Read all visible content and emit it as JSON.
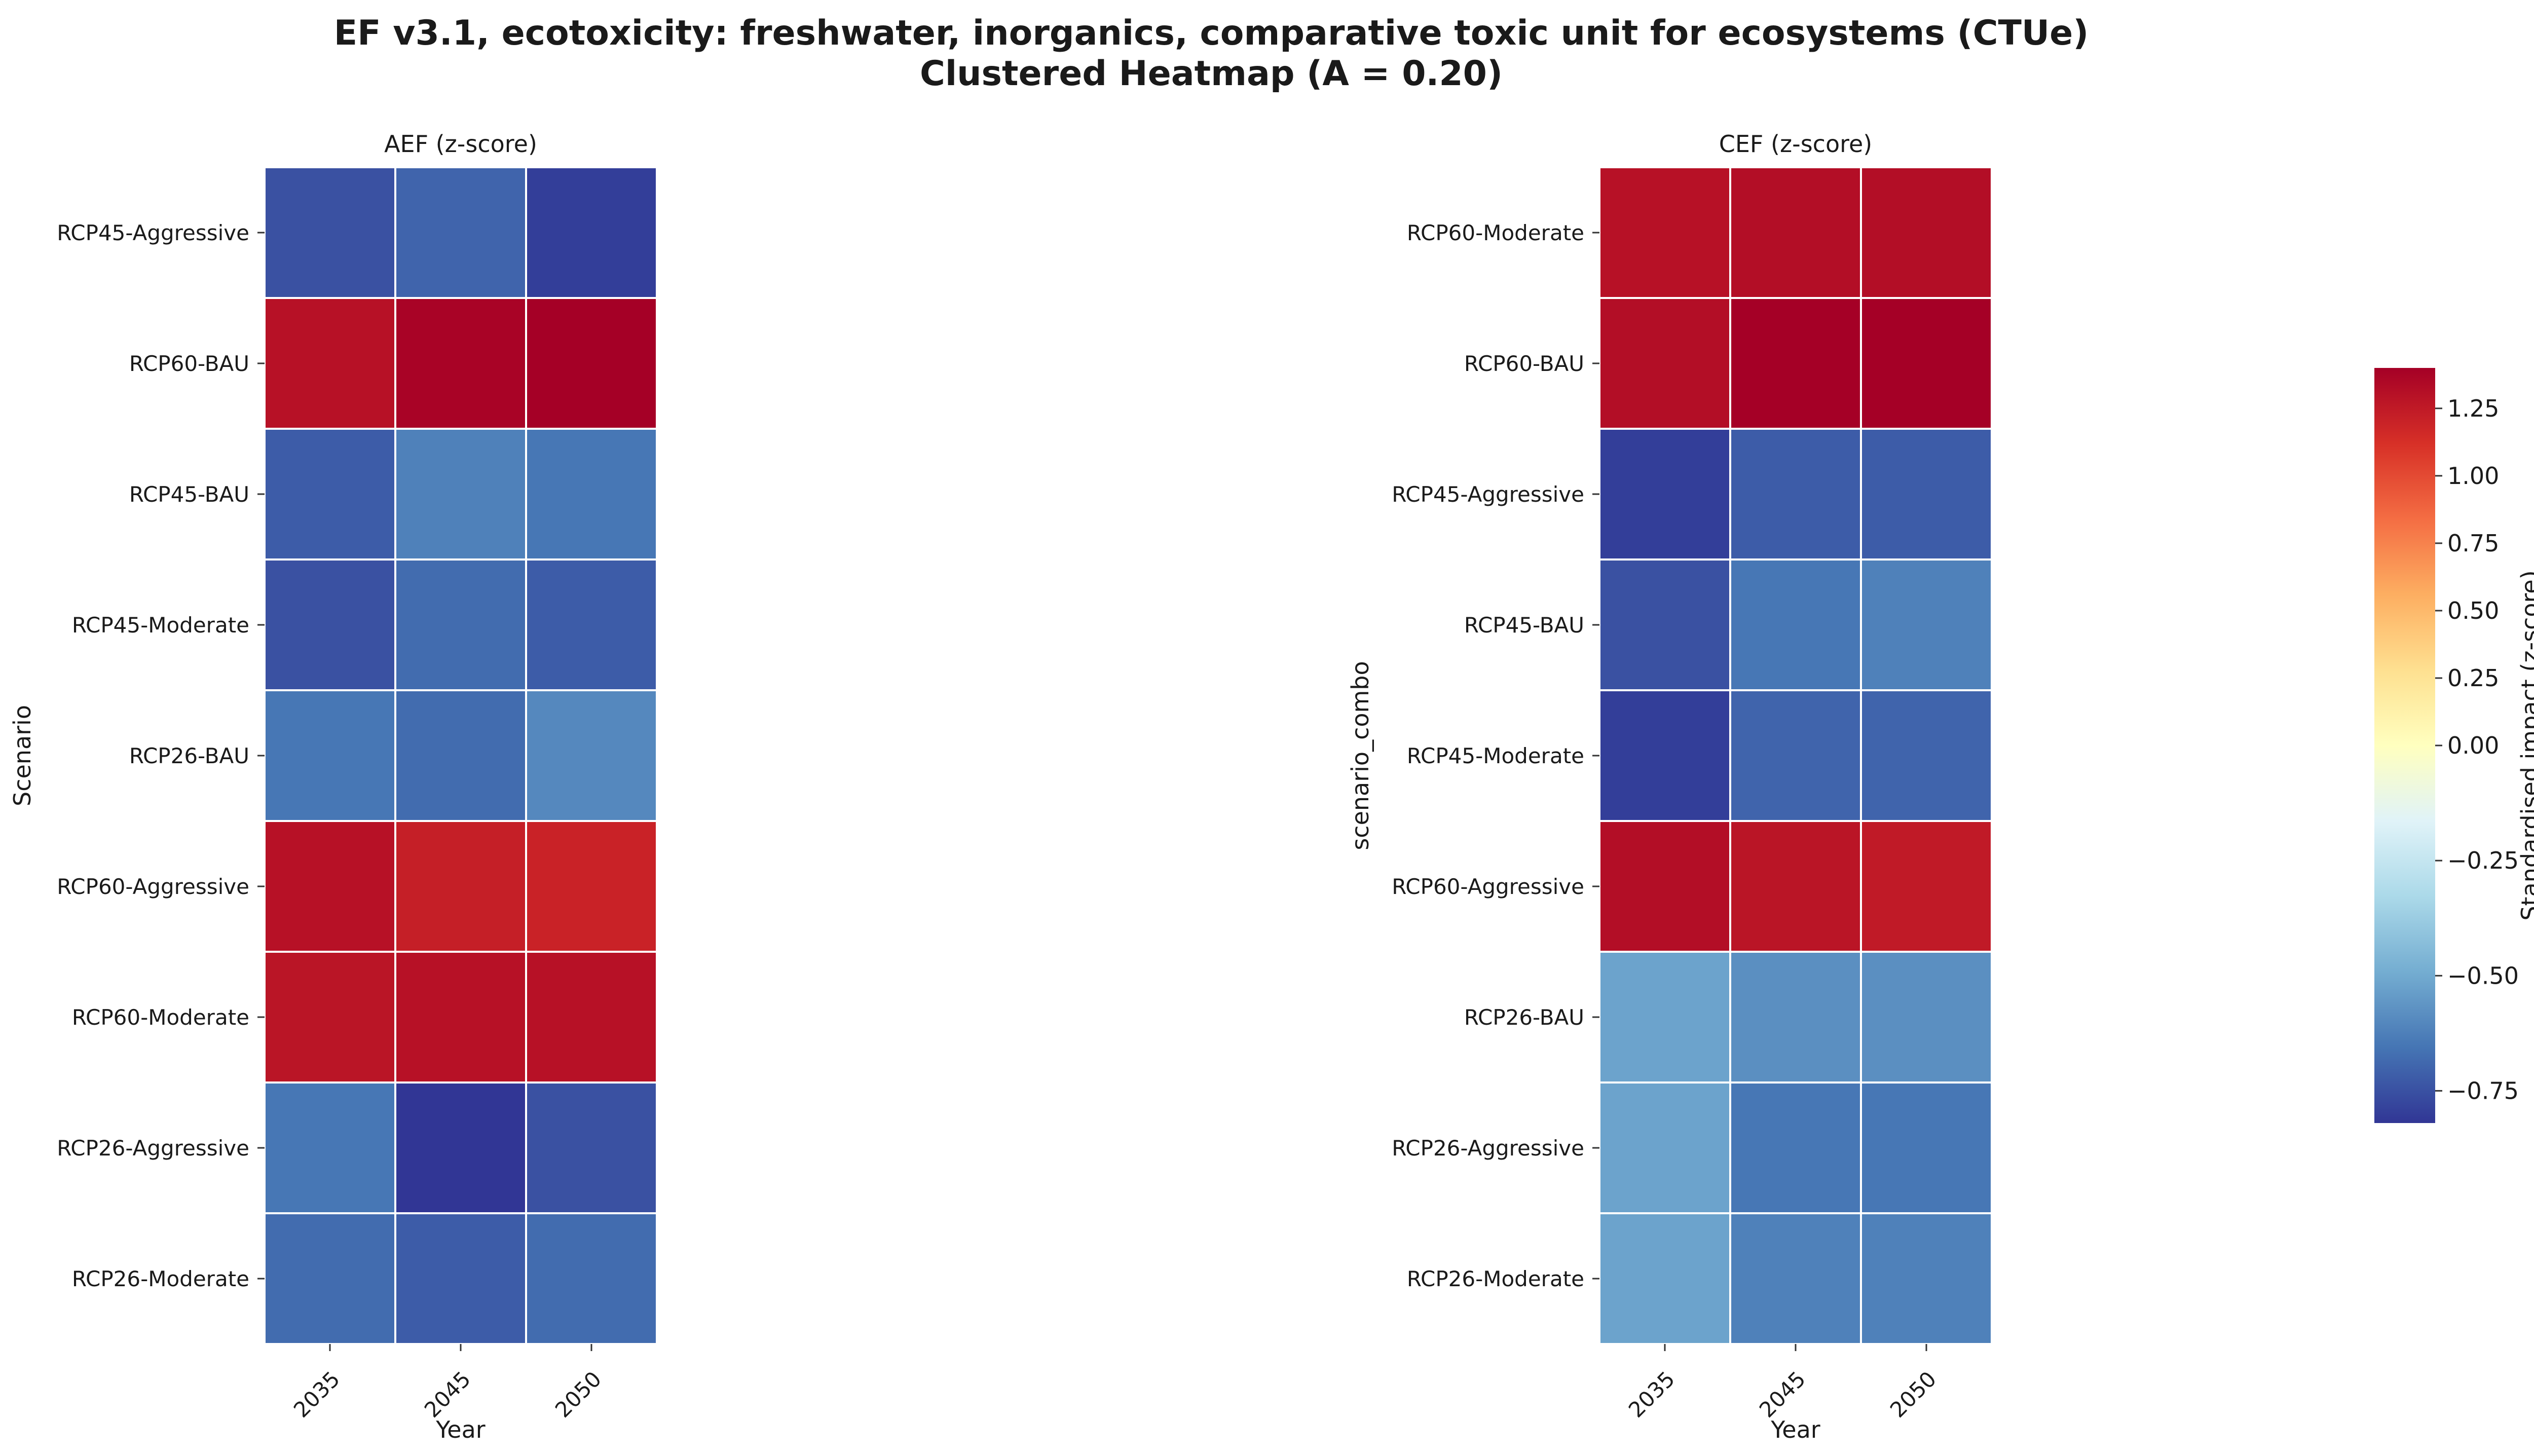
{
  "title_line1": "EF v3.1, ecotoxicity: freshwater, inorganics, comparative toxic unit for ecosystems (CTUe)",
  "title_line2": "Clustered Heatmap (A = 0.20)",
  "colorbar": {
    "label": "Standardised impact (z-score)",
    "min": -0.82,
    "max": 1.4,
    "center": 0,
    "ticks": [
      1.25,
      1.0,
      0.75,
      0.5,
      0.25,
      0.0,
      -0.25,
      -0.5,
      -0.75
    ],
    "tick_labels": [
      "1.25",
      "1.00",
      "0.75",
      "0.50",
      "0.25",
      "0.00",
      "−0.25",
      "−0.50",
      "−0.75"
    ],
    "colormap": "RdYlBu_r",
    "colors": [
      "#313695",
      "#4575b4",
      "#74add1",
      "#abd9e9",
      "#e0f3f8",
      "#ffffbf",
      "#fee090",
      "#fdae61",
      "#f46d43",
      "#d73027",
      "#a50026"
    ]
  },
  "chart_data": [
    {
      "type": "heatmap",
      "title": "AEF (z-score)",
      "xlabel": "Year",
      "ylabel": "Scenario",
      "x": [
        "2035",
        "2045",
        "2050"
      ],
      "y": [
        "RCP45-Aggressive",
        "RCP60-BAU",
        "RCP45-BAU",
        "RCP45-Moderate",
        "RCP26-BAU",
        "RCP60-Aggressive",
        "RCP60-Moderate",
        "RCP26-Aggressive",
        "RCP26-Moderate"
      ],
      "values": [
        [
          -0.75,
          -0.7,
          -0.8
        ],
        [
          1.3,
          1.38,
          1.4
        ],
        [
          -0.72,
          -0.62,
          -0.65
        ],
        [
          -0.75,
          -0.68,
          -0.72
        ],
        [
          -0.65,
          -0.68,
          -0.6
        ],
        [
          1.3,
          1.22,
          1.2
        ],
        [
          1.28,
          1.3,
          1.3
        ],
        [
          -0.65,
          -0.82,
          -0.75
        ],
        [
          -0.68,
          -0.72,
          -0.68
        ]
      ]
    },
    {
      "type": "heatmap",
      "title": "CEF (z-score)",
      "xlabel": "Year",
      "ylabel": "scenario_combo",
      "x": [
        "2035",
        "2045",
        "2050"
      ],
      "y": [
        "RCP60-Moderate",
        "RCP60-BAU",
        "RCP45-Aggressive",
        "RCP45-BAU",
        "RCP45-Moderate",
        "RCP60-Aggressive",
        "RCP26-BAU",
        "RCP26-Aggressive",
        "RCP26-Moderate"
      ],
      "values": [
        [
          1.3,
          1.32,
          1.32
        ],
        [
          1.32,
          1.4,
          1.4
        ],
        [
          -0.8,
          -0.72,
          -0.72
        ],
        [
          -0.75,
          -0.65,
          -0.62
        ],
        [
          -0.8,
          -0.7,
          -0.7
        ],
        [
          1.32,
          1.28,
          1.25
        ],
        [
          -0.52,
          -0.58,
          -0.58
        ],
        [
          -0.52,
          -0.65,
          -0.65
        ],
        [
          -0.52,
          -0.62,
          -0.62
        ]
      ]
    }
  ]
}
